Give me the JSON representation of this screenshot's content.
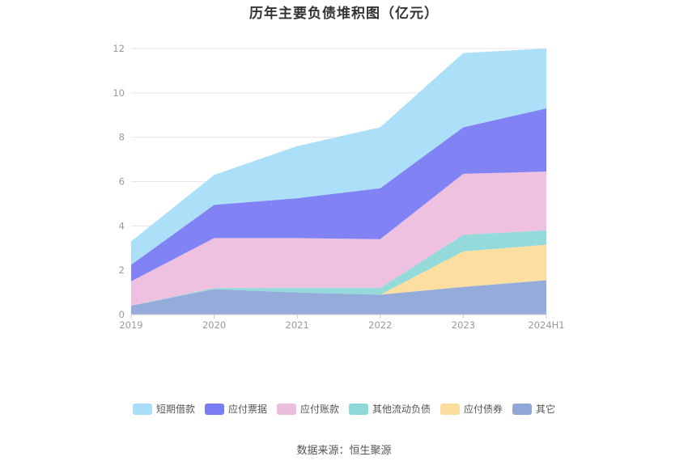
{
  "chart_data": {
    "type": "area",
    "stacked": true,
    "title": "历年主要负债堆积图（亿元）",
    "xlabel": "",
    "ylabel": "",
    "categories": [
      "2019",
      "2020",
      "2021",
      "2022",
      "2023",
      "2024H1"
    ],
    "ylim": [
      0,
      12
    ],
    "yticks": [
      0,
      2,
      4,
      6,
      8,
      10,
      12
    ],
    "grid": true,
    "legend_position": "bottom",
    "series": [
      {
        "name": "其它",
        "color": "#8fa8d8",
        "values": [
          0.4,
          1.15,
          1.0,
          0.9,
          1.25,
          1.55
        ]
      },
      {
        "name": "应付债券",
        "color": "#fcdc9c",
        "values": [
          0,
          0,
          0,
          0,
          1.6,
          1.6
        ]
      },
      {
        "name": "其他流动负债",
        "color": "#8ed8d8",
        "values": [
          0,
          0.05,
          0.2,
          0.3,
          0.75,
          0.65
        ]
      },
      {
        "name": "应付账款",
        "color": "#ecbedd",
        "values": [
          1.1,
          2.25,
          2.25,
          2.2,
          2.75,
          2.65
        ]
      },
      {
        "name": "应付票据",
        "color": "#7a7cf4",
        "values": [
          0.75,
          1.5,
          1.8,
          2.3,
          2.1,
          2.85
        ]
      },
      {
        "name": "短期借款",
        "color": "#a8def8",
        "values": [
          1.05,
          1.35,
          2.35,
          2.75,
          3.35,
          2.7
        ]
      }
    ]
  },
  "legend_items": [
    {
      "label": "短期借款",
      "color": "#a8def8"
    },
    {
      "label": "应付票据",
      "color": "#7a7cf4"
    },
    {
      "label": "应付账款",
      "color": "#ecbedd"
    },
    {
      "label": "其他流动负债",
      "color": "#8ed8d8"
    },
    {
      "label": "应付债券",
      "color": "#fcdc9c"
    },
    {
      "label": "其它",
      "color": "#8fa8d8"
    }
  ],
  "source_text": "数据来源：恒生聚源"
}
